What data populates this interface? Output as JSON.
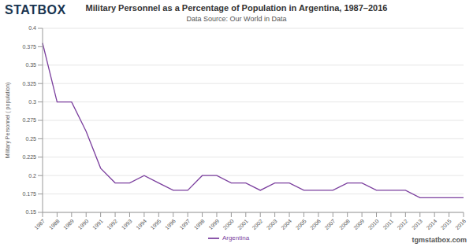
{
  "chart_data": {
    "type": "line",
    "title": "Military Personnel as a Percentage of Population in Argentina, 1987–2016",
    "subtitle": "Data Source: Our World in Data",
    "logo": "STATBOX",
    "footer": "tgmstatbox.com",
    "y_label": "Military Personnel ( population)",
    "categories": [
      "1987",
      "1988",
      "1989",
      "1990",
      "1991",
      "1992",
      "1993",
      "1994",
      "1995",
      "1996",
      "1997",
      "1998",
      "1999",
      "2000",
      "2001",
      "2002",
      "2003",
      "2004",
      "2005",
      "2006",
      "2007",
      "2008",
      "2009",
      "2010",
      "2011",
      "2012",
      "2013",
      "2014",
      "2015",
      "2016"
    ],
    "series": [
      {
        "name": "Argentina",
        "color": "#7b3f9e",
        "values": [
          0.38,
          0.3,
          0.3,
          0.26,
          0.21,
          0.19,
          0.19,
          0.2,
          0.19,
          0.18,
          0.18,
          0.2,
          0.2,
          0.19,
          0.19,
          0.18,
          0.19,
          0.19,
          0.18,
          0.18,
          0.18,
          0.19,
          0.19,
          0.18,
          0.18,
          0.18,
          0.17,
          0.17,
          0.17,
          0.17
        ]
      }
    ],
    "ylim": [
      0.15,
      0.4
    ],
    "yticks": [
      0.15,
      0.175,
      0.2,
      0.225,
      0.25,
      0.275,
      0.3,
      0.325,
      0.35,
      0.375,
      0.4
    ],
    "grid": true,
    "legend": "bottom"
  }
}
